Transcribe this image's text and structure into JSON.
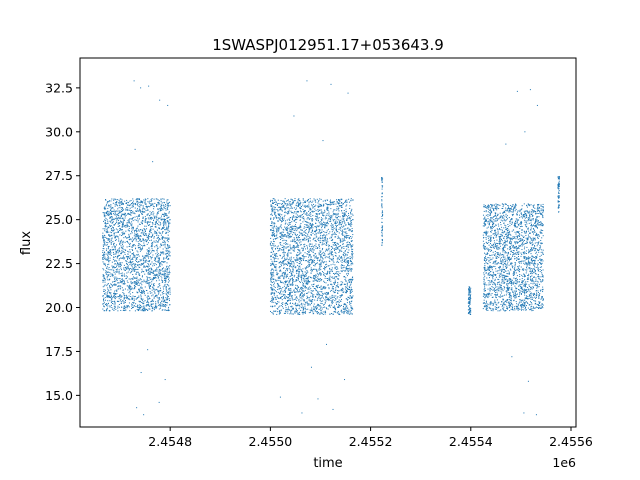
{
  "chart_data": {
    "type": "scatter",
    "title": "1SWASPJ012951.17+053643.9",
    "xlabel": "time",
    "ylabel": "flux",
    "x_offset_label": "1e6",
    "xlim": [
      2454620,
      2455610
    ],
    "ylim": [
      13.2,
      34.2
    ],
    "x_ticks": [
      2454800,
      2455000,
      2455200,
      2455400,
      2455600
    ],
    "x_tick_labels": [
      "2.4548",
      "2.4550",
      "2.4552",
      "2.4554",
      "2.4556"
    ],
    "y_ticks": [
      15.0,
      17.5,
      20.0,
      22.5,
      25.0,
      27.5,
      30.0,
      32.5
    ],
    "y_tick_labels": [
      "15.0",
      "17.5",
      "20.0",
      "22.5",
      "25.0",
      "27.5",
      "30.0",
      "32.5"
    ],
    "grid": false,
    "legend": "none",
    "marker_color": "#1f77b4",
    "series": [
      {
        "segments": [
          {
            "x_start": 2454665,
            "x_end": 2454800,
            "y_low": 19.8,
            "y_high": 26.2
          },
          {
            "x_start": 2455000,
            "x_end": 2455165,
            "y_low": 19.6,
            "y_high": 26.2
          },
          {
            "x_start": 2455222,
            "x_end": 2455224,
            "y_low": 23.5,
            "y_high": 27.5
          },
          {
            "x_start": 2455395,
            "x_end": 2455400,
            "y_low": 19.6,
            "y_high": 21.2
          },
          {
            "x_start": 2455425,
            "x_end": 2455545,
            "y_low": 19.8,
            "y_high": 25.9
          },
          {
            "x_start": 2455574,
            "x_end": 2455577,
            "y_low": 25.4,
            "y_high": 27.5
          }
        ],
        "outliers": [
          [
            2454728,
            32.9
          ],
          [
            2454741,
            32.5
          ],
          [
            2454757,
            32.6
          ],
          [
            2454779,
            31.8
          ],
          [
            2454795,
            31.5
          ],
          [
            2454730,
            29.0
          ],
          [
            2454765,
            28.3
          ],
          [
            2454733,
            14.3
          ],
          [
            2454747,
            13.9
          ],
          [
            2454778,
            14.6
          ],
          [
            2454742,
            16.3
          ],
          [
            2454790,
            15.9
          ],
          [
            2454755,
            17.6
          ],
          [
            2455047,
            30.9
          ],
          [
            2455073,
            32.9
          ],
          [
            2455121,
            32.7
          ],
          [
            2455155,
            32.2
          ],
          [
            2455105,
            29.5
          ],
          [
            2455063,
            14.0
          ],
          [
            2455095,
            14.8
          ],
          [
            2455125,
            14.2
          ],
          [
            2455148,
            15.9
          ],
          [
            2455082,
            16.6
          ],
          [
            2455020,
            14.9
          ],
          [
            2455112,
            17.9
          ],
          [
            2455493,
            32.3
          ],
          [
            2455519,
            32.4
          ],
          [
            2455533,
            31.5
          ],
          [
            2455470,
            29.3
          ],
          [
            2455508,
            30.0
          ],
          [
            2455506,
            14.0
          ],
          [
            2455531,
            13.9
          ],
          [
            2455515,
            15.8
          ],
          [
            2455482,
            17.2
          ]
        ]
      }
    ]
  }
}
